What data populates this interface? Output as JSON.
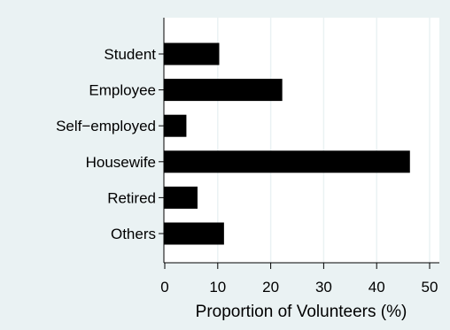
{
  "chart_data": {
    "type": "bar",
    "orientation": "horizontal",
    "categories": [
      "Student",
      "Employee",
      "Self−employed",
      "Housewife",
      "Retired",
      "Others"
    ],
    "values": [
      10.2,
      22.1,
      4.0,
      46.2,
      6.1,
      11.1
    ],
    "xlabel": "Proportion of Volunteers (%)",
    "ylabel": "",
    "xlim": [
      0,
      52
    ],
    "x_ticks": [
      0,
      10,
      20,
      30,
      40,
      50
    ],
    "grid": "vertical",
    "colors": {
      "bar": "#000000",
      "plot_background": "#ffffff",
      "outer_background": "#eaf2f3",
      "grid": "#eaf2f3"
    }
  }
}
